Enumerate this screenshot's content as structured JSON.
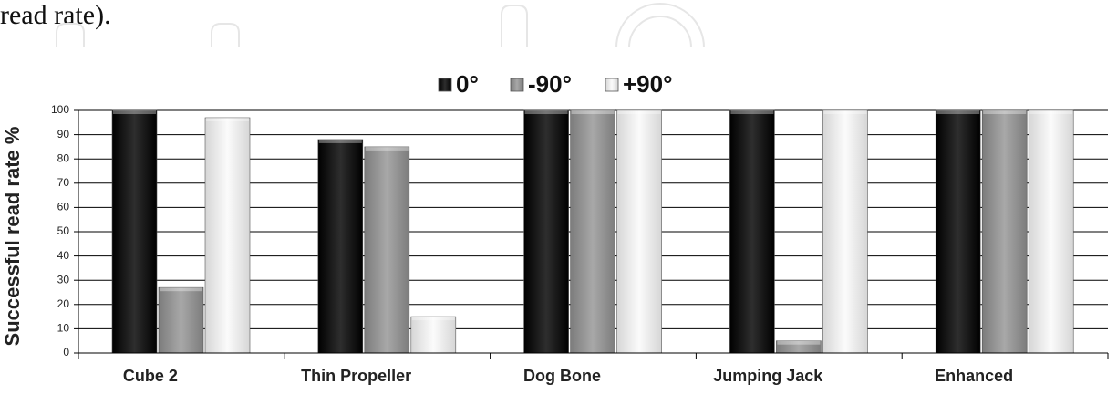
{
  "caption_fragment": "read rate).",
  "chart_data": {
    "type": "bar",
    "title": "",
    "xlabel": "",
    "ylabel": "Successful read rate %",
    "ylim": [
      0,
      100
    ],
    "yticks": [
      0,
      10,
      20,
      30,
      40,
      50,
      60,
      70,
      80,
      90,
      100
    ],
    "grid": true,
    "legend_position": "top-center",
    "categories": [
      "Cube 2",
      "Thin Propeller",
      "Dog Bone",
      "Jumping Jack",
      "Enhanced"
    ],
    "series": [
      {
        "name": "0°",
        "color": "#1e1e1e",
        "values": [
          100,
          88,
          100,
          100,
          100
        ]
      },
      {
        "name": "-90°",
        "color": "#9a9a9a",
        "values": [
          27,
          85,
          100,
          5,
          100
        ]
      },
      {
        "name": "+90°",
        "color": "#ececec",
        "values": [
          97,
          15,
          100,
          100,
          100
        ]
      }
    ]
  }
}
